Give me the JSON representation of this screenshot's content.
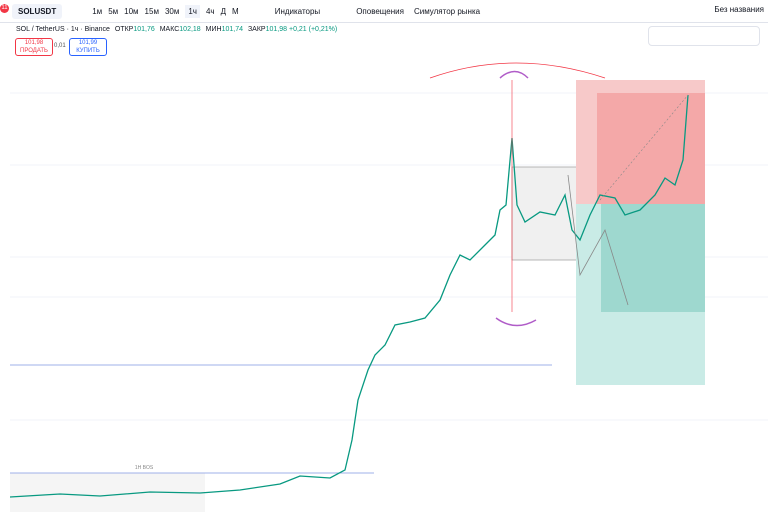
{
  "toolbar": {
    "symbol": "SOLUSDT",
    "intervals": [
      "1м",
      "5м",
      "10м",
      "15м",
      "30м",
      "1ч",
      "4ч",
      "Д",
      "М"
    ],
    "indicators": "Индикаторы",
    "alerts": "Оповещения",
    "simulator": "Симулятор рынка",
    "layout_name": "Без названия"
  },
  "badge": "11",
  "legend": {
    "title": "SOL / TetherUS · 1ч · Binance",
    "ohlc": [
      {
        "label": "ОТКР",
        "value": "101,76"
      },
      {
        "label": "МАКС",
        "value": "102,18"
      },
      {
        "label": "МИН",
        "value": "101,74"
      },
      {
        "label": "ЗАКР",
        "value": "101,98"
      }
    ],
    "change": "+0,21 (+0,21%)"
  },
  "trade": {
    "sell_price": "101,98",
    "sell_label": "ПРОДАТЬ",
    "spread": "0,01",
    "buy_price": "101,99",
    "buy_label": "КУПИТЬ"
  },
  "annotations": {
    "bos_label": "1H BOS"
  }
}
